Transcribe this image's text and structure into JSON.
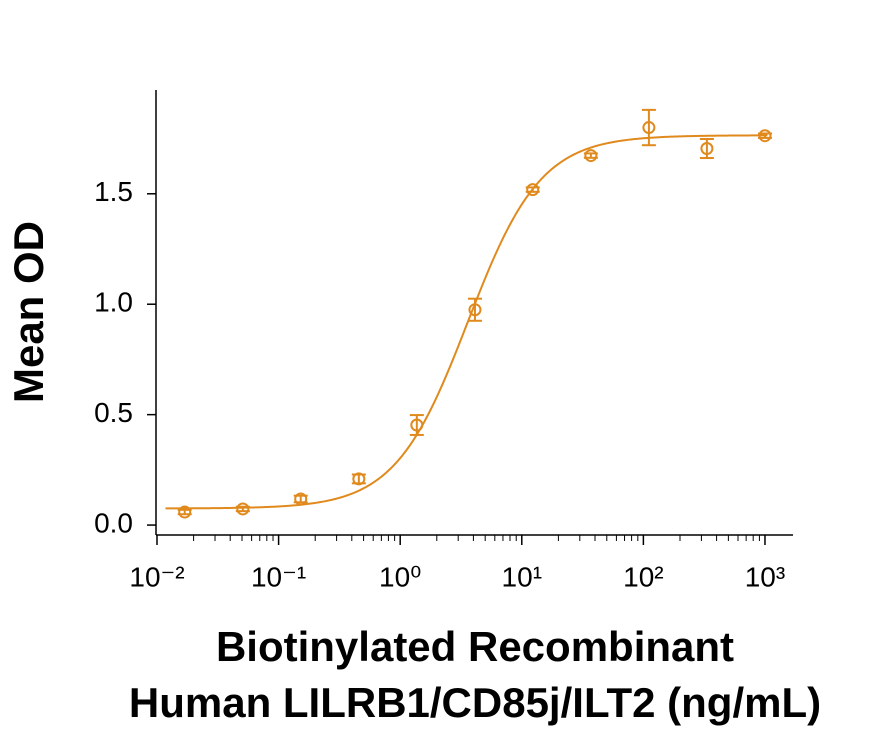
{
  "chart_data": {
    "type": "scatter",
    "ylabel": "Mean OD",
    "xlabel": [
      "Biotinylated Recombinant",
      "Human LILRB1/CD85j/ILT2 (ng/mL)"
    ],
    "xscale": "log",
    "xlim": [
      0.01,
      1700
    ],
    "ylim": [
      -0.045,
      1.97
    ],
    "xticks": [
      {
        "value": 0.01,
        "label": "10⁻²"
      },
      {
        "value": 0.1,
        "label": "10⁻¹"
      },
      {
        "value": 1,
        "label": "10⁰"
      },
      {
        "value": 10,
        "label": "10¹"
      },
      {
        "value": 100,
        "label": "10²"
      },
      {
        "value": 1000,
        "label": "10³"
      }
    ],
    "yticks": [
      {
        "value": 0,
        "label": "0.0"
      },
      0.5,
      {
        "value": 1,
        "label": "1.0"
      },
      1.5
    ],
    "minor_ticks": true,
    "series": [
      {
        "color": "#e08a1e",
        "x": [
          0.0169,
          0.0508,
          0.152,
          0.457,
          1.37,
          4.12,
          12.3,
          37.0,
          111,
          333,
          1000
        ],
        "values": [
          0.059,
          0.073,
          0.118,
          0.209,
          0.453,
          0.975,
          1.519,
          1.673,
          1.8,
          1.705,
          1.763
        ],
        "errors": [
          0.01,
          0.01,
          0.015,
          0.02,
          0.045,
          0.05,
          0.01,
          0.01,
          0.08,
          0.043,
          0.01
        ]
      }
    ],
    "fit": {
      "bottom": 0.075,
      "top": 1.765,
      "ec50": 3.6,
      "hill": 1.45
    }
  }
}
